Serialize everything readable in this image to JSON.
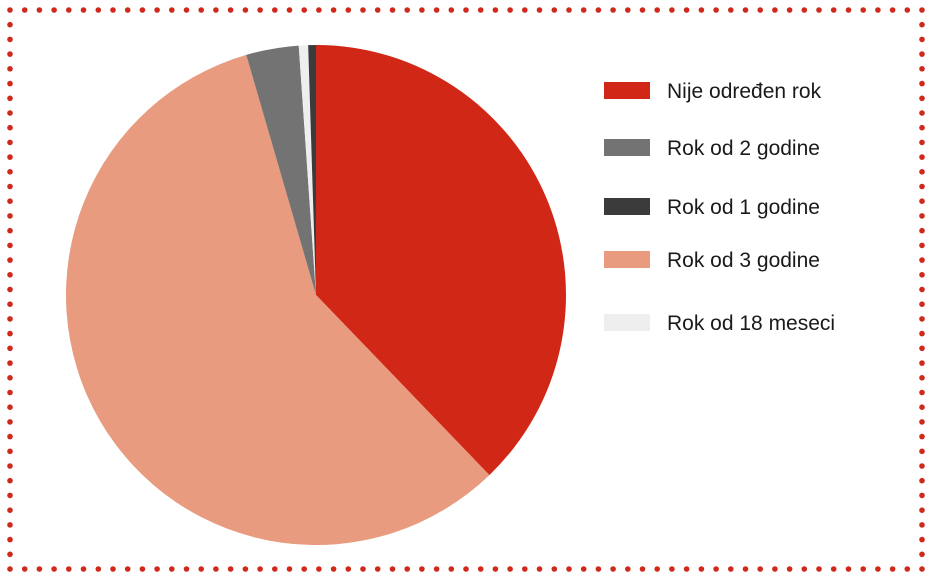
{
  "colors": {
    "frame_dots": "#d0281a",
    "background": "#ffffff"
  },
  "chart_data": {
    "type": "pie",
    "start_angle": "12 o'clock",
    "direction": "clockwise",
    "legend": "right",
    "slices": [
      {
        "label": "Nije određen rok",
        "value": 37.8,
        "color": "#d12717"
      },
      {
        "label": "Rok od 3 godine",
        "value": 57.7,
        "color": "#e89b7e"
      },
      {
        "label": "Rok od 2 godine",
        "value": 3.4,
        "color": "#737373"
      },
      {
        "label": "Rok od 18 meseci",
        "value": 0.6,
        "color": "#eeeeee"
      },
      {
        "label": "Rok od 1 godine",
        "value": 0.5,
        "color": "#3b3b3b"
      }
    ],
    "legend_order": [
      "Nije određen rok",
      "Rok od 2 godine",
      "Rok od 1 godine",
      "Rok od 3 godine",
      "Rok od 18 meseci"
    ]
  }
}
